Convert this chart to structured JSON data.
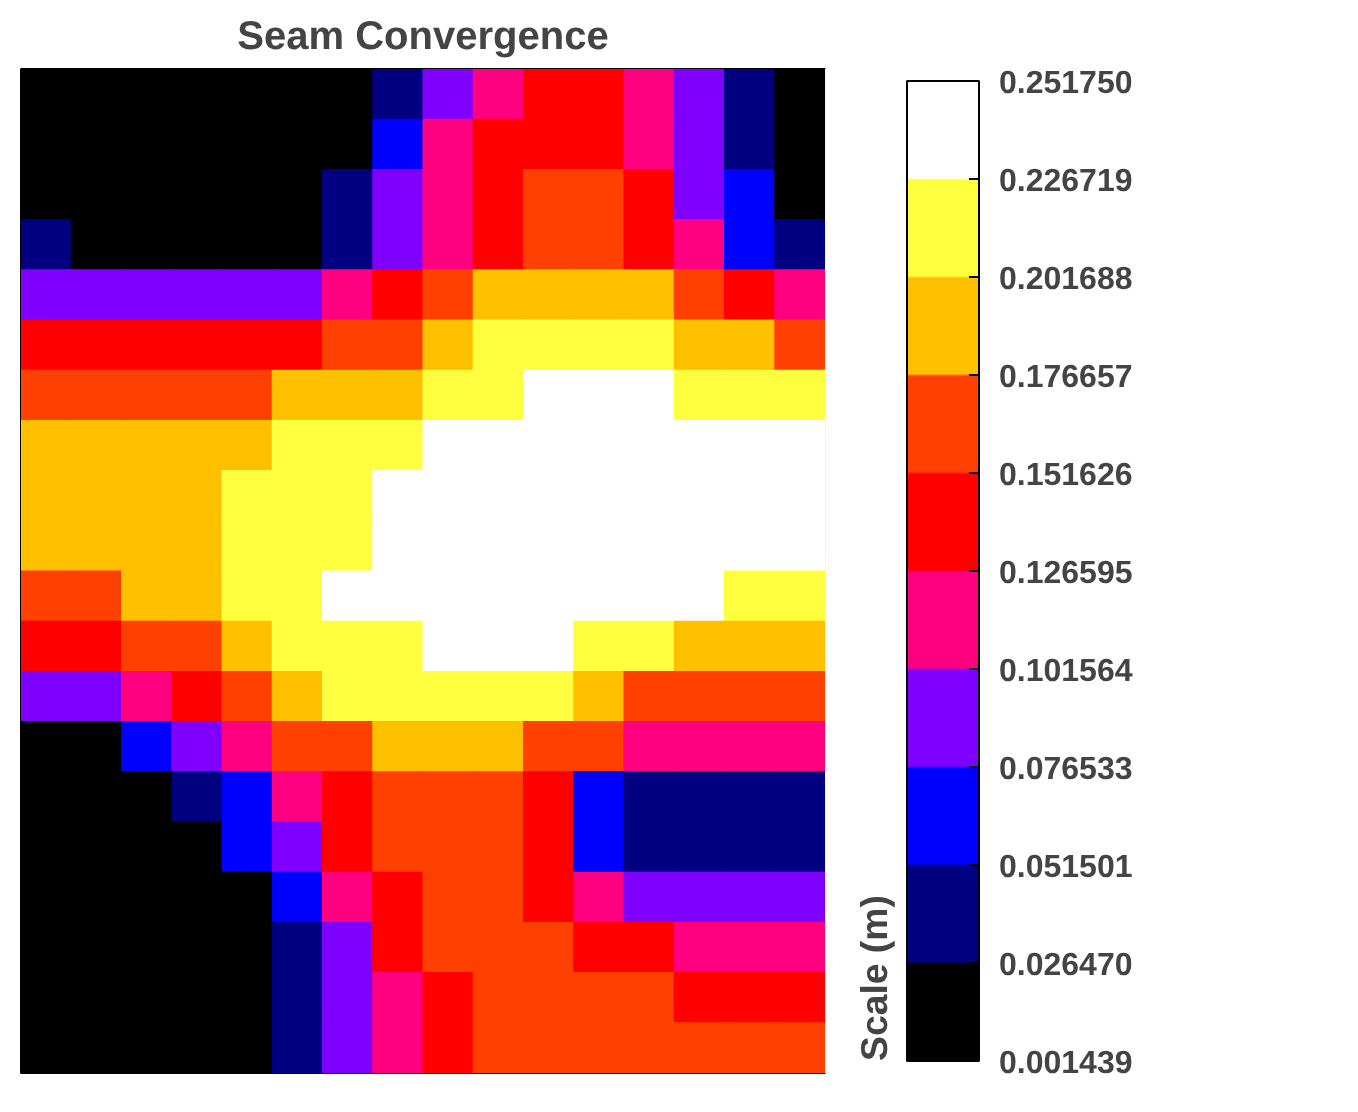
{
  "chart_data": {
    "type": "heatmap",
    "title": "Seam Convergence",
    "clabel": "Scale (m)",
    "categories": [
      null,
      null,
      null,
      null,
      null,
      null,
      null,
      null,
      null,
      null,
      null,
      null,
      null,
      null,
      null,
      null
    ],
    "y_categories": [
      null,
      null,
      null,
      null,
      null,
      null,
      null,
      null,
      null,
      null,
      null,
      null,
      null,
      null,
      null,
      null,
      null,
      null,
      null,
      null
    ],
    "colors": [
      "#000000",
      "#000080",
      "#0000ff",
      "#8000ff",
      "#ff0080",
      "#ff0000",
      "#ff4000",
      "#ffc000",
      "#ffff40",
      "#ffffff"
    ],
    "clim": [
      0.001439,
      0.25175
    ],
    "cticks": [
      0.001439,
      {
        "value": 0.02647,
        "label": "0.026470"
      },
      0.051501,
      0.076533,
      0.101564,
      0.126595,
      0.151626,
      0.176657,
      0.201688,
      0.226719,
      {
        "value": 0.25175,
        "label": "0.251750"
      }
    ],
    "cells": [
      [
        0.014,
        0.014,
        0.014,
        0.014,
        0.014,
        0.014,
        0.014,
        0.039,
        0.089,
        0.114,
        0.139,
        0.139,
        0.114,
        0.089,
        0.039,
        0.014
      ],
      [
        0.014,
        0.014,
        0.014,
        0.014,
        0.014,
        0.014,
        0.014,
        0.064,
        0.114,
        0.139,
        0.139,
        0.139,
        0.114,
        0.089,
        0.039,
        0.014
      ],
      [
        0.014,
        0.014,
        0.014,
        0.014,
        0.014,
        0.014,
        0.039,
        0.089,
        0.114,
        0.139,
        0.164,
        0.164,
        0.139,
        0.089,
        0.064,
        0.014
      ],
      [
        0.039,
        0.014,
        0.014,
        0.014,
        0.014,
        0.014,
        0.039,
        0.089,
        0.114,
        0.139,
        0.164,
        0.164,
        0.139,
        0.114,
        0.064,
        0.039
      ],
      [
        0.089,
        0.089,
        0.089,
        0.089,
        0.089,
        0.089,
        0.114,
        0.139,
        0.164,
        0.189,
        0.189,
        0.189,
        0.189,
        0.164,
        0.139,
        0.114
      ],
      [
        0.139,
        0.139,
        0.139,
        0.139,
        0.139,
        0.139,
        0.164,
        0.164,
        0.189,
        0.214,
        0.214,
        0.214,
        0.214,
        0.189,
        0.189,
        0.164
      ],
      [
        0.164,
        0.164,
        0.164,
        0.164,
        0.164,
        0.189,
        0.189,
        0.189,
        0.214,
        0.214,
        0.239,
        0.239,
        0.239,
        0.214,
        0.214,
        0.214
      ],
      [
        0.189,
        0.189,
        0.189,
        0.189,
        0.189,
        0.214,
        0.214,
        0.214,
        0.239,
        0.239,
        0.239,
        0.239,
        0.239,
        0.239,
        0.239,
        0.239
      ],
      [
        0.189,
        0.189,
        0.189,
        0.189,
        0.214,
        0.214,
        0.214,
        0.239,
        0.239,
        0.239,
        0.239,
        0.239,
        0.239,
        0.239,
        0.239,
        0.239
      ],
      [
        0.189,
        0.189,
        0.189,
        0.189,
        0.214,
        0.214,
        0.214,
        0.239,
        0.239,
        0.239,
        0.239,
        0.239,
        0.239,
        0.239,
        0.239,
        0.239
      ],
      [
        0.164,
        0.164,
        0.189,
        0.189,
        0.214,
        0.214,
        0.239,
        0.239,
        0.239,
        0.239,
        0.239,
        0.239,
        0.239,
        0.239,
        0.214,
        0.214
      ],
      [
        0.139,
        0.139,
        0.164,
        0.164,
        0.189,
        0.214,
        0.214,
        0.214,
        0.239,
        0.239,
        0.239,
        0.214,
        0.214,
        0.189,
        0.189,
        0.189
      ],
      [
        0.089,
        0.089,
        0.114,
        0.139,
        0.164,
        0.189,
        0.214,
        0.214,
        0.214,
        0.214,
        0.214,
        0.189,
        0.164,
        0.164,
        0.164,
        0.164
      ],
      [
        0.014,
        0.014,
        0.064,
        0.089,
        0.114,
        0.164,
        0.164,
        0.189,
        0.189,
        0.189,
        0.164,
        0.164,
        0.114,
        0.114,
        0.114,
        0.114
      ],
      [
        0.014,
        0.014,
        0.014,
        0.039,
        0.064,
        0.114,
        0.139,
        0.164,
        0.164,
        0.164,
        0.139,
        0.064,
        0.039,
        0.039,
        0.039,
        0.039
      ],
      [
        0.014,
        0.014,
        0.014,
        0.014,
        0.064,
        0.089,
        0.139,
        0.164,
        0.164,
        0.164,
        0.139,
        0.064,
        0.039,
        0.039,
        0.039,
        0.039
      ],
      [
        0.014,
        0.014,
        0.014,
        0.014,
        0.014,
        0.064,
        0.114,
        0.139,
        0.164,
        0.164,
        0.139,
        0.114,
        0.089,
        0.089,
        0.089,
        0.089
      ],
      [
        0.014,
        0.014,
        0.014,
        0.014,
        0.014,
        0.039,
        0.089,
        0.139,
        0.164,
        0.164,
        0.164,
        0.139,
        0.139,
        0.114,
        0.114,
        0.114
      ],
      [
        0.014,
        0.014,
        0.014,
        0.014,
        0.014,
        0.039,
        0.089,
        0.114,
        0.139,
        0.164,
        0.164,
        0.164,
        0.164,
        0.139,
        0.139,
        0.139
      ],
      [
        0.014,
        0.014,
        0.014,
        0.014,
        0.014,
        0.039,
        0.089,
        0.114,
        0.139,
        0.164,
        0.164,
        0.164,
        0.164,
        0.164,
        0.164,
        0.164
      ]
    ]
  }
}
